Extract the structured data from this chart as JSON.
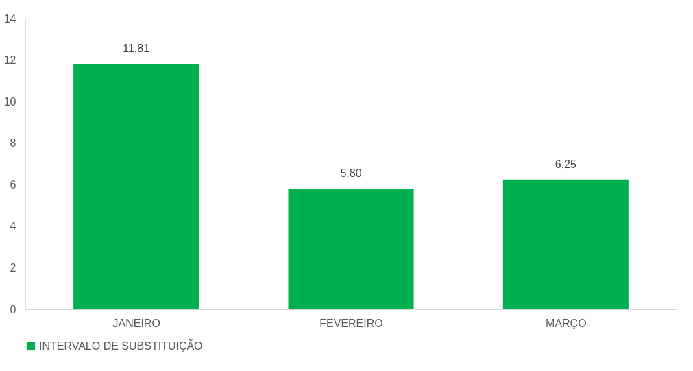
{
  "chart_data": {
    "type": "bar",
    "categories": [
      "JANEIRO",
      "FEVEREIRO",
      "MARÇO"
    ],
    "series": [
      {
        "name": "INTERVALO DE SUBSTITUIÇÃO",
        "color": "#00b050",
        "values": [
          11.81,
          5.8,
          6.25
        ],
        "value_labels": [
          "11,81",
          "5,80",
          "6,25"
        ]
      }
    ],
    "ylim": [
      0,
      14
    ],
    "yticks": [
      0,
      2,
      4,
      6,
      8,
      10,
      12,
      14
    ],
    "grid": false,
    "legend": "bottom"
  }
}
